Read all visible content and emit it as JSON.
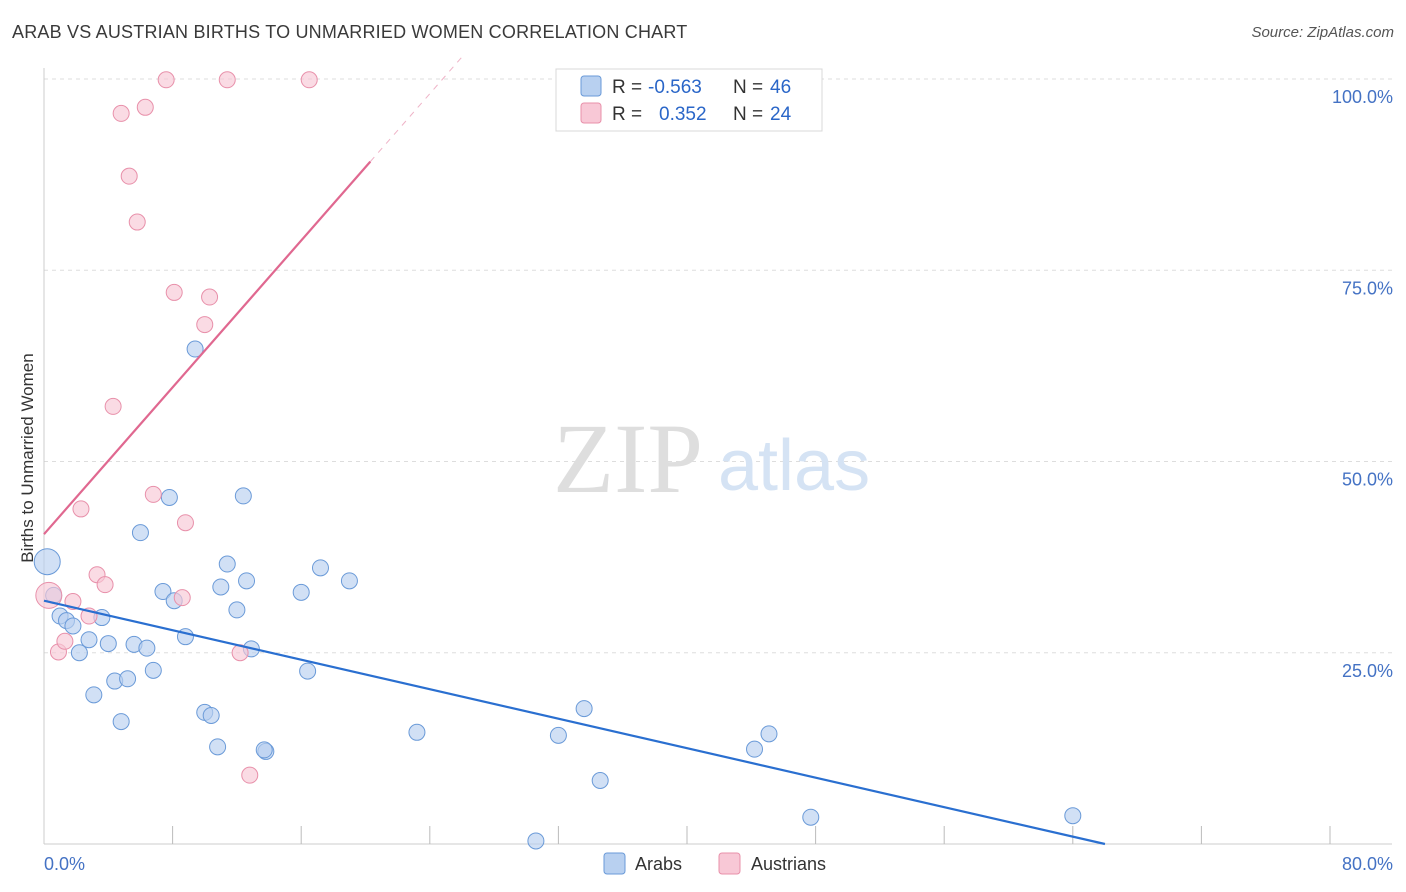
{
  "title": "ARAB VS AUSTRIAN BIRTHS TO UNMARRIED WOMEN CORRELATION CHART",
  "source": "Source: ZipAtlas.com",
  "watermark": {
    "zip": "ZIP",
    "atlas": "atlas"
  },
  "legend": {
    "r_label": "R =",
    "n_label": "N =",
    "arabs": {
      "r": "-0.563",
      "n": "46"
    },
    "austrians": {
      "r": "0.352",
      "n": "24"
    }
  },
  "bottom_legend": {
    "arabs": "Arabs",
    "austrians": "Austrians"
  },
  "colors": {
    "arabs_fill": "#b8d0f0",
    "arabs_stroke": "#6a9ad8",
    "arabs_line": "#2a6fd0",
    "austrians_fill": "#f8c8d6",
    "austrians_stroke": "#e890aa",
    "austrians_line": "#e06890",
    "grid": "#dddddd",
    "tick_text": "#4472c4"
  },
  "chart_data": {
    "type": "scatter",
    "title": "ARAB VS AUSTRIAN BIRTHS TO UNMARRIED WOMEN CORRELATION CHART",
    "xlabel": "",
    "ylabel": "Births to Unmarried Women",
    "xlim": [
      0,
      80
    ],
    "ylim": [
      0,
      100
    ],
    "x_tick_labels": [
      "0.0%",
      "80.0%"
    ],
    "y_ticks": [
      25,
      50,
      75,
      100
    ],
    "y_tick_labels": [
      "25.0%",
      "50.0%",
      "75.0%",
      "100.0%"
    ],
    "series": [
      {
        "name": "Arabs",
        "r": -0.563,
        "n": 46,
        "trend": {
          "x0": 0,
          "y0": 31.8,
          "x1": 66,
          "y1": 0
        },
        "points": [
          [
            0.2,
            36.9
          ],
          [
            0.6,
            32.5
          ],
          [
            1.0,
            29.8
          ],
          [
            1.4,
            29.2
          ],
          [
            1.8,
            28.5
          ],
          [
            2.2,
            25.0
          ],
          [
            2.8,
            26.7
          ],
          [
            3.1,
            19.5
          ],
          [
            3.6,
            29.6
          ],
          [
            4.0,
            26.2
          ],
          [
            4.4,
            21.3
          ],
          [
            4.8,
            16.0
          ],
          [
            5.2,
            21.6
          ],
          [
            5.6,
            26.1
          ],
          [
            6.0,
            40.7
          ],
          [
            6.4,
            25.6
          ],
          [
            6.8,
            22.7
          ],
          [
            7.4,
            33.0
          ],
          [
            7.8,
            45.3
          ],
          [
            8.1,
            31.8
          ],
          [
            8.8,
            27.1
          ],
          [
            9.4,
            64.7
          ],
          [
            10.0,
            17.2
          ],
          [
            10.4,
            16.8
          ],
          [
            10.8,
            12.7
          ],
          [
            11.0,
            33.6
          ],
          [
            11.4,
            36.6
          ],
          [
            12.0,
            30.6
          ],
          [
            12.4,
            45.5
          ],
          [
            12.6,
            34.4
          ],
          [
            12.9,
            25.5
          ],
          [
            13.8,
            12.1
          ],
          [
            13.7,
            12.3
          ],
          [
            16.0,
            32.9
          ],
          [
            16.4,
            22.6
          ],
          [
            17.2,
            36.1
          ],
          [
            19.0,
            34.4
          ],
          [
            23.2,
            14.6
          ],
          [
            30.6,
            0.4
          ],
          [
            32.0,
            14.2
          ],
          [
            33.6,
            17.7
          ],
          [
            34.6,
            8.3
          ],
          [
            44.2,
            12.4
          ],
          [
            45.1,
            14.4
          ],
          [
            47.7,
            3.5
          ],
          [
            64.0,
            3.7
          ]
        ]
      },
      {
        "name": "Austrians",
        "r": 0.352,
        "n": 24,
        "trend": {
          "x0": 0,
          "y0": 40.5,
          "x1": 20.3,
          "y1": 89.2
        },
        "points": [
          [
            0.3,
            32.5
          ],
          [
            0.9,
            25.1
          ],
          [
            1.3,
            26.5
          ],
          [
            1.8,
            31.7
          ],
          [
            2.3,
            43.8
          ],
          [
            2.8,
            29.8
          ],
          [
            3.3,
            35.2
          ],
          [
            3.8,
            33.9
          ],
          [
            4.3,
            57.2
          ],
          [
            4.8,
            95.5
          ],
          [
            5.3,
            87.3
          ],
          [
            5.8,
            81.3
          ],
          [
            6.3,
            96.3
          ],
          [
            6.8,
            45.7
          ],
          [
            7.6,
            99.9
          ],
          [
            8.1,
            72.1
          ],
          [
            8.6,
            32.2
          ],
          [
            8.8,
            42.0
          ],
          [
            10.0,
            67.9
          ],
          [
            10.3,
            71.5
          ],
          [
            12.2,
            25.0
          ],
          [
            12.8,
            9.0
          ],
          [
            11.4,
            99.9
          ],
          [
            16.5,
            99.9
          ]
        ]
      }
    ]
  }
}
